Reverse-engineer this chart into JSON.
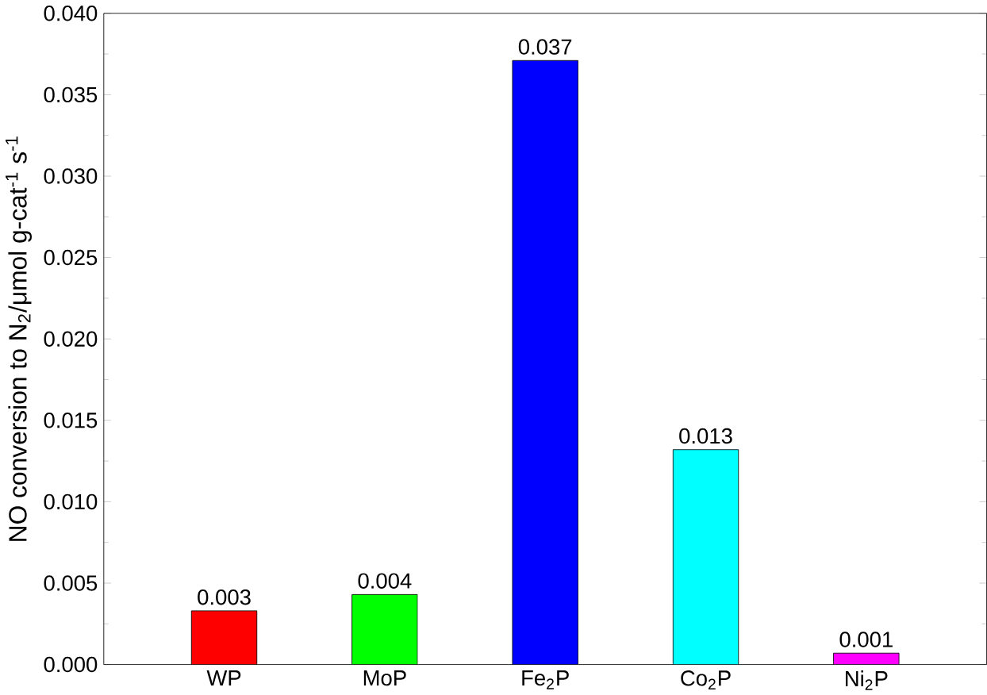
{
  "chart_data": {
    "type": "bar",
    "ylabel": "NO conversion to N$_{2}$/μmol g-cat$^{-1}$ s$^{-1}$",
    "categories": [
      "WP",
      "MoP",
      "Fe$_{2}$P",
      "Co$_{2}$P",
      "Ni$_{2}$P"
    ],
    "values": [
      0.0033,
      0.0043,
      0.0371,
      0.0132,
      0.0007
    ],
    "colors": [
      "#ff0000",
      "#00ff00",
      "#0000ff",
      "#00ffff",
      "#ff00ff"
    ],
    "value_labels": [
      "0.003",
      "0.004",
      "0.037",
      "0.013",
      "0.001"
    ],
    "ylim": [
      0,
      0.04
    ],
    "yticks": [
      {
        "value": 0,
        "label": "0.000"
      },
      {
        "value": 0.005,
        "label": "0.005"
      },
      {
        "value": 0.01,
        "label": "0.010"
      },
      {
        "value": 0.015,
        "label": "0.015"
      },
      {
        "value": 0.02,
        "label": "0.020"
      },
      {
        "value": 0.025,
        "label": "0.025"
      },
      {
        "value": 0.03,
        "label": "0.030"
      },
      {
        "value": 0.035,
        "label": "0.035"
      },
      {
        "value": 0.04,
        "label": "0.040"
      }
    ],
    "grid": false
  }
}
